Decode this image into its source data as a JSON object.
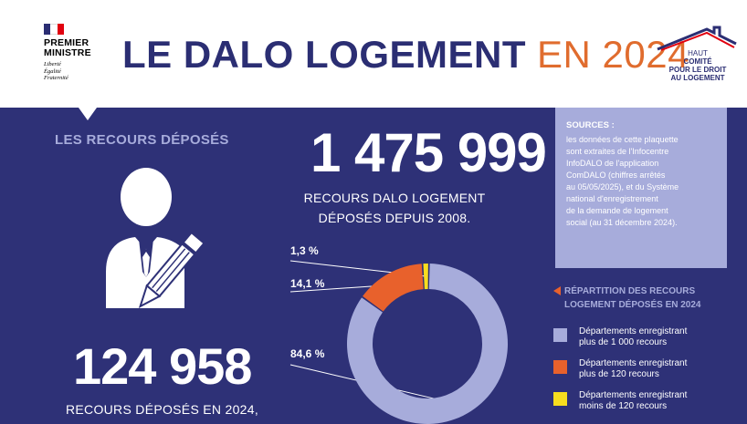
{
  "header": {
    "logo_left_title_line1": "PREMIER",
    "logo_left_title_line2": "MINISTRE",
    "logo_left_motto_1": "Liberté",
    "logo_left_motto_2": "Égalité",
    "logo_left_motto_3": "Fraternité",
    "title_bold": "LE DALO LOGEMENT",
    "title_year": "EN 2024",
    "logo_right_line1": "HAUT",
    "logo_right_line2": "COMITÉ",
    "logo_right_line3": "POUR LE DROIT",
    "logo_right_line4": "AU LOGEMENT"
  },
  "left": {
    "section_label": "LES RECOURS DÉPOSÉS",
    "count_2024": "124 958",
    "count_2024_label": "RECOURS DÉPOSÉS EN 2024,"
  },
  "center": {
    "count_total": "1 475 999",
    "count_total_label_line1": "RECOURS DALO LOGEMENT",
    "count_total_label_line2": "DÉPOSÉS DEPUIS 2008."
  },
  "sources": {
    "title": "SOURCES :",
    "line1": "les données de cette plaquette",
    "line2": "sont extraites de l'Infocentre",
    "line3": "InfoDALO de l'application",
    "line4": "ComDALO (chiffres arrêtés",
    "line5": "au 05/05/2025), et du Système",
    "line6": "national d'enregistrement",
    "line7": "de la demande de logement",
    "line8": "social (au 31 décembre 2024)."
  },
  "legend": {
    "title_line1": "RÉPARTITION DES RECOURS",
    "title_line2": "LOGEMENT DÉPOSÉS EN 2024",
    "items": [
      {
        "line1": "Départements enregistrant",
        "line2": "plus de 1 000 recours",
        "color": "#a7acdb"
      },
      {
        "line1": "Départements enregistrant",
        "line2": "plus de 120 recours",
        "color": "#e8612c"
      },
      {
        "line1": "Départements enregistrant",
        "line2": "moins de 120 recours",
        "color": "#f7dd1e"
      }
    ]
  },
  "chart_data": {
    "type": "pie",
    "categories": [
      "Départements enregistrant plus de 1 000 recours",
      "Départements enregistrant plus de 120 recours",
      "Départements enregistrant moins de 120 recours"
    ],
    "values": [
      84.6,
      14.1,
      1.3
    ],
    "labels": [
      "84,6 %",
      "14,1 %",
      "1,3 %"
    ],
    "colors": [
      "#a7acdb",
      "#e8612c",
      "#f7dd1e"
    ]
  },
  "colors": {
    "navy": "#2e3177",
    "title_navy": "#2b2e73",
    "accent_orange": "#e06c2e",
    "lavender": "#a7acdb"
  }
}
